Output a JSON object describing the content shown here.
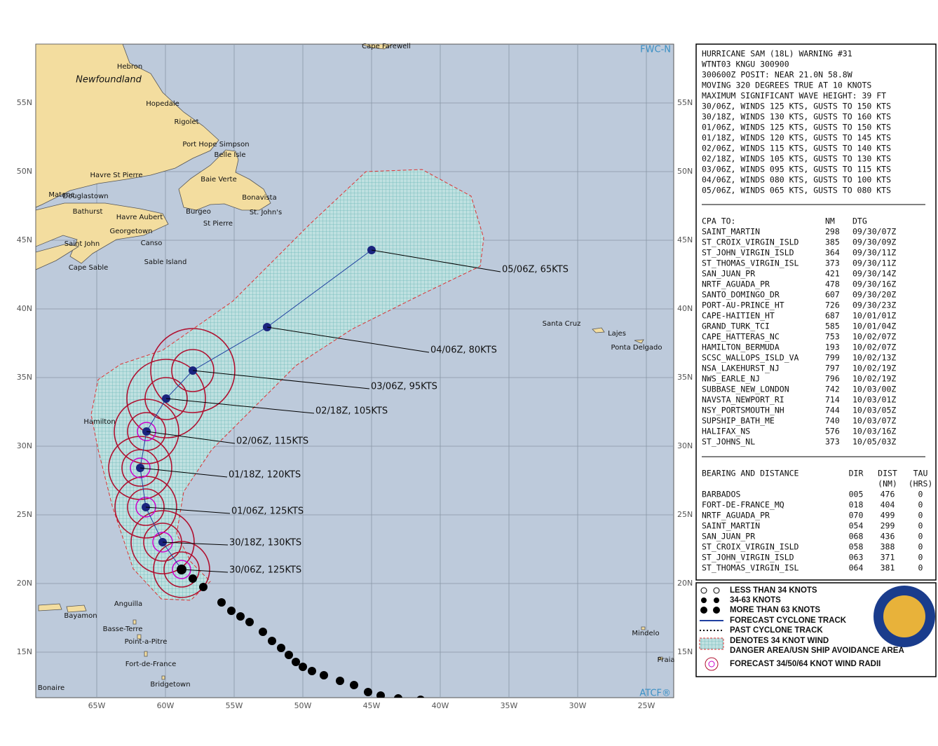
{
  "map": {
    "corner_top": "FWC-N",
    "corner_bottom": "ATCF®",
    "lat_labels": [
      "55N",
      "50N",
      "45N",
      "40N",
      "35N",
      "30N",
      "25N",
      "20N",
      "15N"
    ],
    "lon_labels": [
      "65W",
      "60W",
      "55W",
      "50W",
      "45W",
      "40W",
      "35W",
      "30W",
      "25W"
    ],
    "places": [
      "Cape Farewell",
      "Hebron",
      "Newfoundland",
      "Hopedale",
      "Rigolet",
      "Port Hope Simpson",
      "Belle Isle",
      "Havre St Pierre",
      "Baie Verte",
      "Matane",
      "Douglastown",
      "Bonavista",
      "Bathurst",
      "Havre Aubert",
      "Burgeo",
      "St. John's",
      "Georgetown",
      "St Pierre",
      "Saint John",
      "Canso",
      "Sable Island",
      "Cape Sable",
      "Santa Cruz",
      "Lajes",
      "Ponta Delgado",
      "Hamilton",
      "Anguilla",
      "Bayamon",
      "Basse-Terre",
      "Point-a-Pitre",
      "Fort-de-France",
      "Bridgetown",
      "Bonaire",
      "Mindelo",
      "Praia"
    ],
    "forecast_labels": [
      "05/06Z, 65KTS",
      "04/06Z, 80KTS",
      "03/06Z, 95KTS",
      "02/18Z, 105KTS",
      "02/06Z, 115KTS",
      "01/18Z, 120KTS",
      "01/06Z, 125KTS",
      "30/18Z, 130KTS",
      "30/06Z, 125KTS"
    ]
  },
  "warning": {
    "lines": [
      "HURRICANE SAM (18L) WARNING #31",
      "WTNT03 KNGU 300900",
      "300600Z POSIT: NEAR 21.0N 58.8W",
      "MOVING 320 DEGREES TRUE AT 10 KNOTS",
      "MAXIMUM SIGNIFICANT WAVE HEIGHT: 39 FT",
      "30/06Z, WINDS 125 KTS, GUSTS TO 150 KTS",
      "30/18Z, WINDS 130 KTS, GUSTS TO 160 KTS",
      "01/06Z, WINDS 125 KTS, GUSTS TO 150 KTS",
      "01/18Z, WINDS 120 KTS, GUSTS TO 145 KTS",
      "02/06Z, WINDS 115 KTS, GUSTS TO 140 KTS",
      "02/18Z, WINDS 105 KTS, GUSTS TO 130 KTS",
      "03/06Z, WINDS 095 KTS, GUSTS TO 115 KTS",
      "04/06Z, WINDS 080 KTS, GUSTS TO 100 KTS",
      "05/06Z, WINDS 065 KTS, GUSTS TO 080 KTS"
    ]
  },
  "cpa": {
    "columns": [
      "CPA TO:",
      "NM",
      "DTG"
    ],
    "rows": [
      [
        "SAINT_MARTIN",
        298,
        "09/30/07Z"
      ],
      [
        "ST_CROIX_VIRGIN_ISLD",
        385,
        "09/30/09Z"
      ],
      [
        "ST_JOHN_VIRGIN_ISLD",
        364,
        "09/30/11Z"
      ],
      [
        "ST_THOMAS_VIRGIN_ISL",
        373,
        "09/30/11Z"
      ],
      [
        "SAN_JUAN_PR",
        421,
        "09/30/14Z"
      ],
      [
        "NRTF_AGUADA_PR",
        478,
        "09/30/16Z"
      ],
      [
        "SANTO_DOMINGO_DR",
        607,
        "09/30/20Z"
      ],
      [
        "PORT-AU-PRINCE_HT",
        726,
        "09/30/23Z"
      ],
      [
        "CAPE-HAITIEN_HT",
        687,
        "10/01/01Z"
      ],
      [
        "GRAND_TURK_TCI",
        585,
        "10/01/04Z"
      ],
      [
        "CAPE_HATTERAS_NC",
        753,
        "10/02/07Z"
      ],
      [
        "HAMILTON_BERMUDA",
        193,
        "10/02/07Z"
      ],
      [
        "SCSC_WALLOPS_ISLD_VA",
        799,
        "10/02/13Z"
      ],
      [
        "NSA_LAKEHURST_NJ",
        797,
        "10/02/19Z"
      ],
      [
        "NWS_EARLE_NJ",
        796,
        "10/02/19Z"
      ],
      [
        "SUBBASE_NEW_LONDON",
        742,
        "10/03/00Z"
      ],
      [
        "NAVSTA_NEWPORT_RI",
        714,
        "10/03/01Z"
      ],
      [
        "NSY_PORTSMOUTH_NH",
        744,
        "10/03/05Z"
      ],
      [
        "SUPSHIP_BATH_ME",
        740,
        "10/03/07Z"
      ],
      [
        "HALIFAX_NS",
        576,
        "10/03/16Z"
      ],
      [
        "ST_JOHNS_NL",
        373,
        "10/05/03Z"
      ]
    ]
  },
  "bearing": {
    "columns": [
      "BEARING AND DISTANCE",
      "DIR",
      "DIST",
      "TAU"
    ],
    "subcolumns": [
      "(NM)",
      "(HRS)"
    ],
    "rows": [
      [
        "BARBADOS",
        "005",
        476,
        0
      ],
      [
        "FORT-DE-FRANCE_MQ",
        "018",
        404,
        0
      ],
      [
        "NRTF_AGUADA_PR",
        "070",
        499,
        0
      ],
      [
        "SAINT_MARTIN",
        "054",
        299,
        0
      ],
      [
        "SAN_JUAN_PR",
        "068",
        436,
        0
      ],
      [
        "ST_CROIX_VIRGIN_ISLD",
        "058",
        388,
        0
      ],
      [
        "ST_JOHN_VIRGIN_ISLD",
        "063",
        371,
        0
      ],
      [
        "ST_THOMAS_VIRGIN_ISL",
        "064",
        381,
        0
      ]
    ]
  },
  "legend": {
    "items": [
      "LESS THAN 34 KNOTS",
      "34-63 KNOTS",
      "MORE THAN 63 KNOTS",
      "FORECAST CYCLONE TRACK",
      "PAST CYCLONE TRACK",
      "DENOTES 34 KNOT WIND",
      "DANGER AREA/USN SHIP AVOIDANCE AREA",
      "FORECAST 34/50/64 KNOT WIND RADII"
    ]
  }
}
